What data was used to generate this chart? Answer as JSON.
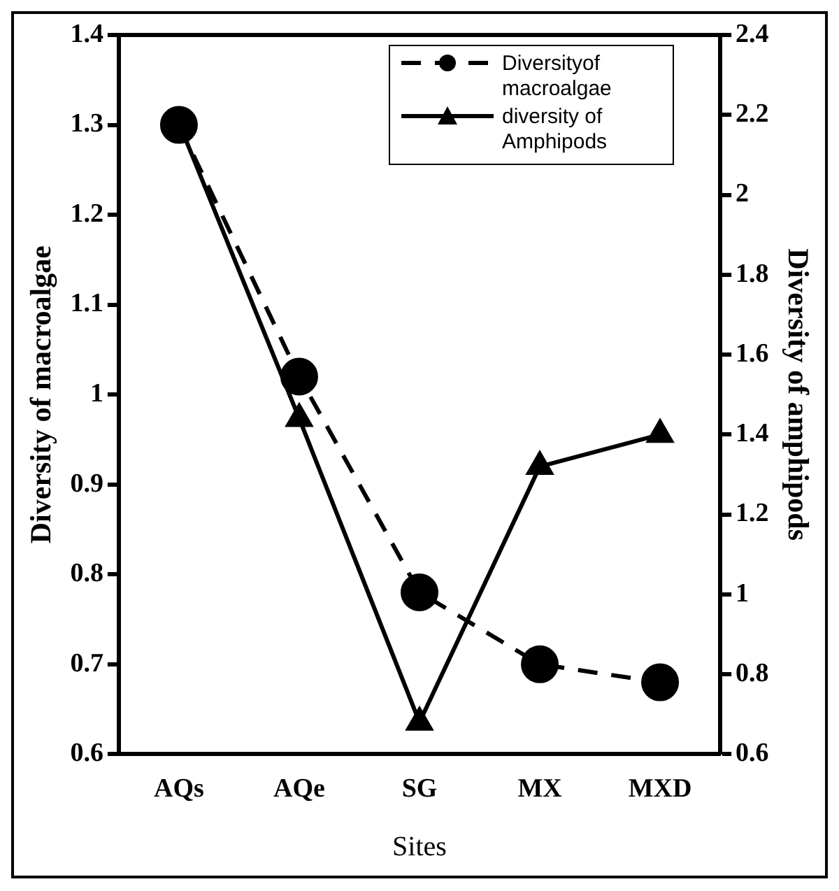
{
  "chart_data": {
    "type": "line",
    "xlabel": "Sites",
    "ylabel": "Diversity of macroalgae",
    "y2label": "Diversity of amphipods",
    "categories": [
      "AQs",
      "AQe",
      "SG",
      "MX",
      "MXD"
    ],
    "series": [
      {
        "name": "Diversityof macroalgae",
        "color": "#000000",
        "values": [
          1.3,
          1.02,
          0.78,
          0.7,
          0.68
        ],
        "marker": "circle",
        "line_style": "dashed"
      },
      {
        "name": "diversity of Amphipods",
        "color": "#000000",
        "values": [
          2.18,
          1.44,
          0.68,
          1.32,
          1.4
        ],
        "marker": "triangle",
        "line_style": "solid",
        "axis": "y2"
      }
    ],
    "ylim": [
      0.6,
      1.4
    ],
    "yticks": [
      0.6,
      0.7,
      0.8,
      0.9,
      1,
      1.1,
      1.2,
      1.3,
      1.4
    ],
    "y2lim": [
      0.6,
      2.4
    ],
    "y2ticks": [
      0.6,
      0.8,
      1,
      1.2,
      1.4,
      1.6,
      1.8,
      2,
      2.2,
      2.4
    ],
    "grid": false,
    "legend": "top right"
  }
}
